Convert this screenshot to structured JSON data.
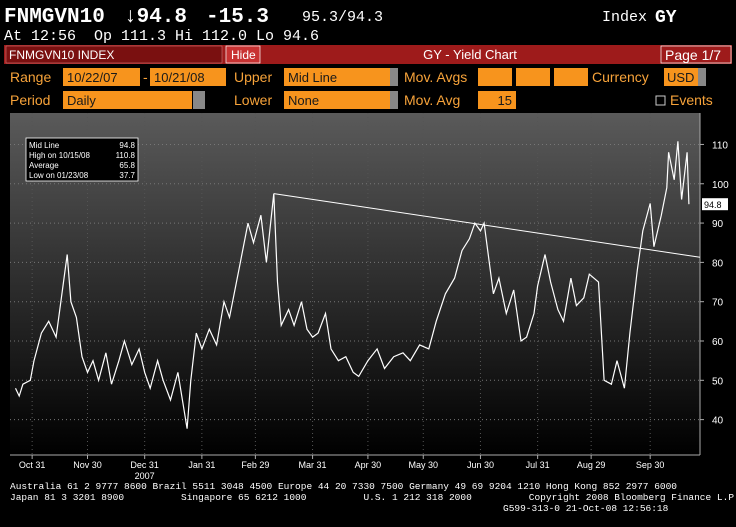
{
  "header": {
    "ticker": "FNMGVN10",
    "last": "↓94.8",
    "change": "-15.3",
    "bid_ask": "95.3/94.3",
    "index": "Index",
    "function": "GY",
    "quote": "At 12:56  Op 111.3 Hi 112.0 Lo 94.6"
  },
  "toolbar": {
    "security": "FNMGVN10 INDEX",
    "hide": "Hide",
    "title": "GY - Yield Chart",
    "page": "Page 1/7"
  },
  "controls": {
    "range_label": "Range",
    "range_start": "10/22/07",
    "range_sep": "-",
    "range_end": "10/21/08",
    "upper_label": "Upper",
    "upper": "Mid Line",
    "mov_avgs_label": "Mov. Avgs",
    "currency_label": "Currency",
    "currency": "USD",
    "period_label": "Period",
    "period": "Daily",
    "lower_label": "Lower",
    "lower": "None",
    "mov_avg_label": "Mov. Avg",
    "mov_avg": "15",
    "events": "Events"
  },
  "chart_data": {
    "type": "line",
    "color": "#ffffff",
    "x": [
      "10/22/07",
      "10/24/07",
      "10/26/07",
      "10/30/07",
      "11/01/07",
      "11/05/07",
      "11/09/07",
      "11/13/07",
      "11/19/07",
      "11/21/07",
      "11/24/07",
      "11/27/07",
      "11/30/07",
      "12/03/07",
      "12/06/07",
      "12/10/07",
      "12/13/07",
      "12/17/07",
      "12/20/07",
      "12/24/07",
      "12/28/07",
      "12/31/07",
      "01/03/08",
      "01/07/08",
      "01/10/08",
      "01/14/08",
      "01/18/08",
      "01/23/08",
      "01/25/08",
      "01/28/08",
      "01/31/08",
      "02/04/08",
      "02/08/08",
      "02/12/08",
      "02/15/08",
      "02/20/08",
      "02/25/08",
      "02/28/08",
      "03/03/08",
      "03/06/08",
      "03/10/08",
      "03/12/08",
      "03/14/08",
      "03/18/08",
      "03/21/08",
      "03/25/08",
      "03/28/08",
      "03/31/08",
      "04/03/08",
      "04/07/08",
      "04/10/08",
      "04/14/08",
      "04/18/08",
      "04/22/08",
      "04/25/08",
      "04/30/08",
      "05/05/08",
      "05/09/08",
      "05/14/08",
      "05/19/08",
      "05/23/08",
      "05/28/08",
      "06/02/08",
      "06/06/08",
      "06/11/08",
      "06/16/08",
      "06/20/08",
      "06/24/08",
      "06/27/08",
      "06/30/08",
      "07/02/08",
      "07/07/08",
      "07/10/08",
      "07/14/08",
      "07/18/08",
      "07/22/08",
      "07/25/08",
      "07/29/08",
      "07/31/08",
      "08/04/08",
      "08/07/08",
      "08/11/08",
      "08/14/08",
      "08/18/08",
      "08/21/08",
      "08/25/08",
      "08/28/08",
      "09/02/08",
      "09/05/08",
      "09/09/08",
      "09/12/08",
      "09/16/08",
      "09/19/08",
      "09/23/08",
      "09/26/08",
      "09/30/08",
      "10/02/08",
      "10/06/08",
      "10/09/08",
      "10/10/08",
      "10/13/08",
      "10/15/08",
      "10/17/08",
      "10/20/08",
      "10/21/08"
    ],
    "values": [
      48,
      46,
      49,
      50,
      55,
      62,
      65,
      61,
      82,
      70,
      66,
      56,
      52,
      55,
      50,
      57,
      49,
      55,
      60,
      54,
      58,
      52,
      48,
      55,
      50,
      45,
      52,
      37.7,
      50,
      62,
      58,
      63,
      59,
      70,
      66,
      78,
      90,
      85,
      92,
      80,
      97.5,
      75,
      64,
      68,
      64,
      70,
      63,
      61,
      62,
      67,
      58,
      55,
      56,
      52,
      51,
      55,
      58,
      53,
      56,
      57,
      55,
      59,
      58,
      65,
      72,
      76,
      83,
      86,
      90,
      88,
      90,
      72,
      76,
      67,
      73,
      60,
      61,
      67,
      74,
      82,
      75,
      68,
      65,
      76,
      69,
      71,
      77,
      75,
      50,
      49,
      55,
      48,
      62,
      78,
      88,
      95,
      84,
      92,
      99,
      108,
      101,
      110.8,
      96,
      108,
      94.8
    ],
    "last_value": 94.8,
    "trendline": {
      "x": [
        "03/10/08",
        "10/27/08"
      ],
      "values": [
        97.5,
        81.3
      ]
    },
    "stats": [
      {
        "label": "Mid Line",
        "value": 94.8
      },
      {
        "label": "High on 10/15/08",
        "value": 110.8
      },
      {
        "label": "Average",
        "value": 65.8
      },
      {
        "label": "Low on 01/23/08",
        "value": 37.7
      }
    ],
    "xlim": [
      "10/19/07",
      "10/27/08"
    ],
    "xticks": [
      {
        "value": "10/31/07",
        "label": "Oct 31"
      },
      {
        "value": "11/30/07",
        "label": "Nov 30"
      },
      {
        "value": "12/31/07",
        "label": "Dec 31"
      },
      {
        "value": "01/31/08",
        "label": "Jan 31"
      },
      {
        "value": "02/29/08",
        "label": "Feb 29"
      },
      {
        "value": "03/31/08",
        "label": "Mar 31"
      },
      {
        "value": "04/30/08",
        "label": "Apr 30"
      },
      {
        "value": "05/30/08",
        "label": "May 30"
      },
      {
        "value": "06/30/08",
        "label": "Jun 30"
      },
      {
        "value": "07/31/08",
        "label": "Jul 31"
      },
      {
        "value": "08/29/08",
        "label": "Aug 29"
      },
      {
        "value": "09/30/08",
        "label": "Sep 30"
      }
    ],
    "year_label": "2007",
    "ylim": [
      31,
      118
    ],
    "yticks": [
      40,
      50,
      60,
      70,
      80,
      90,
      100,
      110
    ],
    "grid": true
  },
  "footer": {
    "line1": "Australia 61 2 9777 8600 Brazil 5511 3048 4500 Europe 44 20 7330 7500 Germany 49 69 9204 1210 Hong Kong 852 2977 6000",
    "line2": "Japan 81 3 3201 8900          Singapore 65 6212 1000          U.S. 1 212 318 2000          Copyright 2008 Bloomberg Finance L.P.",
    "line3": "G599-313-0 21-Oct-08 12:56:18"
  }
}
